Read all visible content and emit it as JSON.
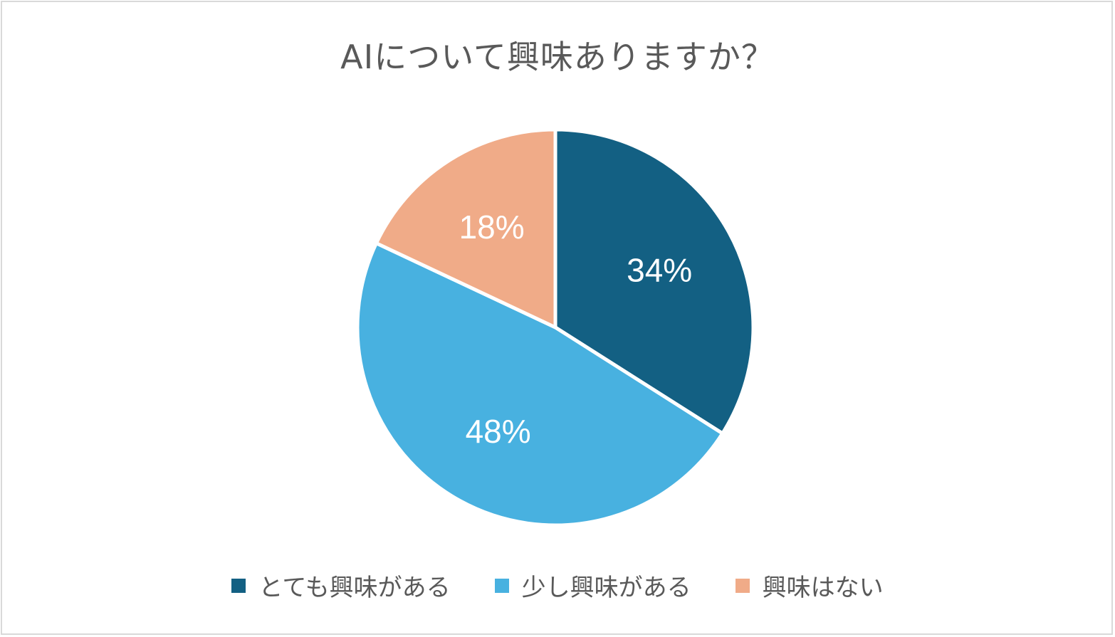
{
  "chart_data": {
    "type": "pie",
    "title": "AIについて興味ありますか？",
    "categories": [
      "とても興味がある",
      "少し興味がある",
      "興味はない"
    ],
    "values": [
      34,
      48,
      18
    ],
    "labels": [
      "34%",
      "48%",
      "18%"
    ],
    "colors": [
      "#136083",
      "#48b1e0",
      "#f0ab88"
    ],
    "start": "12 o'clock",
    "direction": "clockwise",
    "legend": "bottom"
  }
}
